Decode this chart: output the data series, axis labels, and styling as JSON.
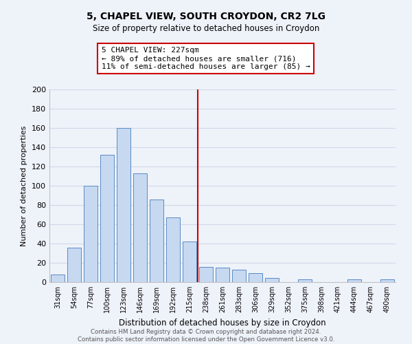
{
  "title": "5, CHAPEL VIEW, SOUTH CROYDON, CR2 7LG",
  "subtitle": "Size of property relative to detached houses in Croydon",
  "xlabel": "Distribution of detached houses by size in Croydon",
  "ylabel": "Number of detached properties",
  "bar_labels": [
    "31sqm",
    "54sqm",
    "77sqm",
    "100sqm",
    "123sqm",
    "146sqm",
    "169sqm",
    "192sqm",
    "215sqm",
    "238sqm",
    "261sqm",
    "283sqm",
    "306sqm",
    "329sqm",
    "352sqm",
    "375sqm",
    "398sqm",
    "421sqm",
    "444sqm",
    "467sqm",
    "490sqm"
  ],
  "bar_values": [
    8,
    36,
    100,
    132,
    160,
    113,
    86,
    67,
    42,
    16,
    15,
    13,
    9,
    4,
    0,
    3,
    0,
    0,
    3,
    0,
    3
  ],
  "bar_color": "#c6d9f0",
  "bar_edge_color": "#5a8ac6",
  "reference_line_color": "#cc0000",
  "annotation_line1": "5 CHAPEL VIEW: 227sqm",
  "annotation_line2": "← 89% of detached houses are smaller (716)",
  "annotation_line3": "11% of semi-detached houses are larger (85) →",
  "annotation_box_color": "#ffffff",
  "annotation_box_edge": "#cc0000",
  "ylim": [
    0,
    200
  ],
  "yticks": [
    0,
    20,
    40,
    60,
    80,
    100,
    120,
    140,
    160,
    180,
    200
  ],
  "footer_text": "Contains HM Land Registry data © Crown copyright and database right 2024.\nContains public sector information licensed under the Open Government Licence v3.0.",
  "background_color": "#eef2f9",
  "grid_color": "#d0d8e8"
}
